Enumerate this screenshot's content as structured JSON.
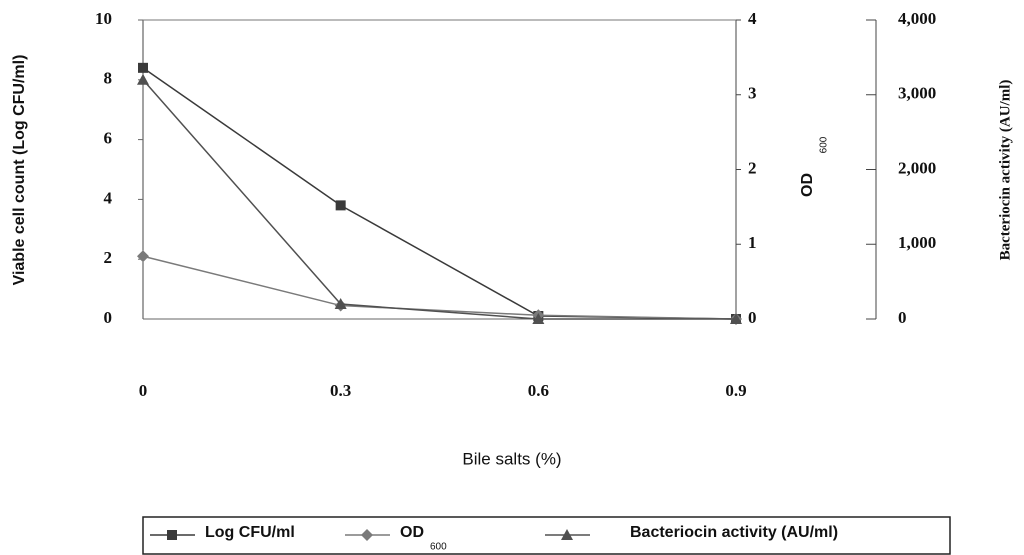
{
  "chart_data": {
    "type": "line",
    "xlabel": "Bile salts (%)",
    "ylabel": "Viable cell count (Log CFU/ml)",
    "y2label": "OD",
    "y2label_sub": "600",
    "y3label": "Bacteriocin activity (AU/ml)",
    "x": [
      0,
      0.3,
      0.6,
      0.9
    ],
    "xlim": [
      0,
      0.9
    ],
    "xticks": [
      0,
      0.3,
      0.6,
      0.9
    ],
    "ylim": [
      0,
      10
    ],
    "yticks": [
      0,
      2,
      4,
      6,
      8,
      10
    ],
    "y2lim": [
      0,
      4
    ],
    "y2ticks": [
      0,
      1,
      2,
      3,
      4
    ],
    "y3lim": [
      0,
      4000
    ],
    "y3ticks": [
      0,
      {
        "value": 1000,
        "label": "1,000"
      },
      {
        "value": 2000,
        "label": "2,000"
      },
      {
        "value": 3000,
        "label": "3,000"
      },
      {
        "value": 4000,
        "label": "4,000"
      }
    ],
    "series": [
      {
        "name": "Log CFU/ml",
        "color": "#3a3a3a",
        "marker": "square",
        "values": [
          8.4,
          3.8,
          0.1,
          0
        ]
      },
      {
        "name": "OD",
        "name_sub": "600",
        "color": "#7a7a7a",
        "marker": "diamond",
        "axis": "y2",
        "values": [
          0.84,
          0.18,
          0.05,
          0
        ]
      },
      {
        "name": "Bacteriocin activity (AU/ml)",
        "color": "#505050",
        "marker": "triangle",
        "axis": "y3",
        "values": [
          3200,
          200,
          0,
          0
        ]
      }
    ]
  }
}
